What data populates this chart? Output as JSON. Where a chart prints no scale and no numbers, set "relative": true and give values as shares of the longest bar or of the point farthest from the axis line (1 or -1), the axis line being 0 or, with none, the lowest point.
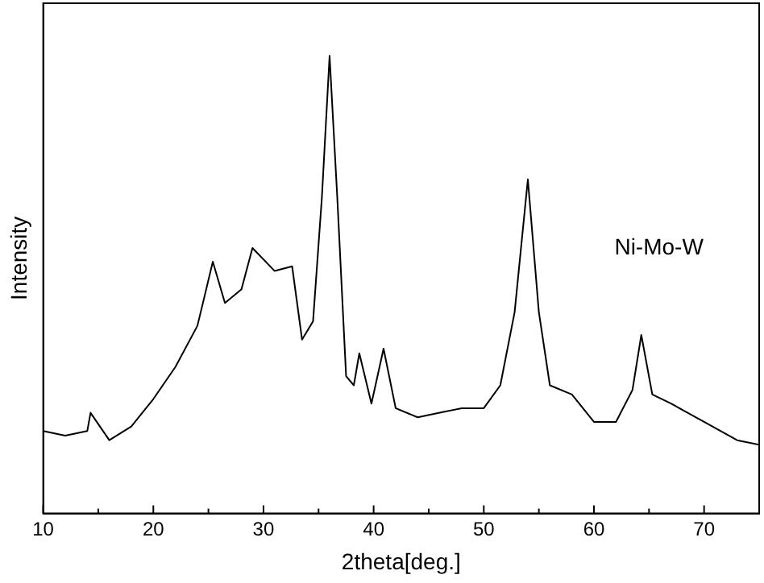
{
  "chart_data": {
    "type": "line",
    "relative": true,
    "xlabel": "2theta[deg.]",
    "ylabel": "Intensity",
    "xlim": [
      10,
      75
    ],
    "xticks": [
      10,
      {
        "value": 15,
        "label": null
      },
      20,
      {
        "value": 25,
        "label": null
      },
      30,
      {
        "value": 35,
        "label": null
      },
      40,
      {
        "value": 45,
        "label": null
      },
      50,
      {
        "value": 55,
        "label": null
      },
      60,
      {
        "value": 65,
        "label": null
      },
      70,
      {
        "value": 75,
        "label": null
      }
    ],
    "x": [
      10,
      12,
      14,
      14.3,
      16,
      18,
      20,
      22,
      24,
      25.4,
      26.5,
      28,
      29,
      31,
      32.6,
      33.5,
      34.5,
      35.3,
      36,
      36.7,
      37.5,
      38.2,
      38.7,
      39.8,
      40.9,
      42,
      44,
      46,
      48,
      50,
      51.5,
      52.8,
      54,
      55,
      56,
      58,
      60,
      62,
      63.5,
      64.3,
      65.3,
      67,
      70,
      73,
      75
    ],
    "series": [
      {
        "color": "#000000",
        "values": [
          0.18,
          0.17,
          0.18,
          0.22,
          0.16,
          0.19,
          0.25,
          0.32,
          0.41,
          0.55,
          0.46,
          0.49,
          0.58,
          0.53,
          0.54,
          0.38,
          0.42,
          0.69,
          1.0,
          0.69,
          0.3,
          0.28,
          0.35,
          0.24,
          0.36,
          0.23,
          0.21,
          0.22,
          0.23,
          0.23,
          0.28,
          0.44,
          0.73,
          0.44,
          0.28,
          0.26,
          0.2,
          0.2,
          0.27,
          0.39,
          0.26,
          0.24,
          0.2,
          0.16,
          0.15
        ]
      }
    ],
    "annotations": [
      "Ni-Mo-W"
    ],
    "grid": false,
    "legend": false,
    "marker": "none",
    "line_style": "solid"
  }
}
